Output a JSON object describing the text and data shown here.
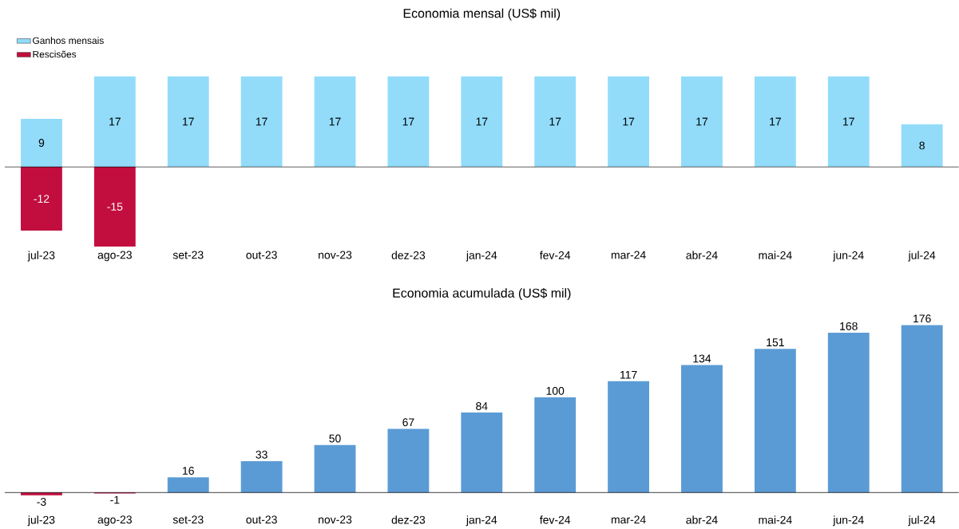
{
  "chart_data": [
    {
      "type": "bar",
      "title": "Economia mensal (US$ mil)",
      "categories": [
        "jul-23",
        "ago-23",
        "set-23",
        "out-23",
        "nov-23",
        "dez-23",
        "jan-24",
        "fev-24",
        "mar-24",
        "abr-24",
        "mai-24",
        "jun-24",
        "jul-24"
      ],
      "stacked": true,
      "data_labels": true,
      "legend": "top left",
      "series": [
        {
          "name": "Ganhos mensais",
          "color": "#92dcfa",
          "values": [
            9,
            17,
            17,
            17,
            17,
            17,
            17,
            17,
            17,
            17,
            17,
            17,
            8
          ]
        },
        {
          "name": "Rescisões",
          "color": "#c20e3e",
          "values": [
            -12,
            -15,
            null,
            null,
            null,
            null,
            null,
            null,
            null,
            null,
            null,
            null,
            null
          ]
        }
      ]
    },
    {
      "type": "bar",
      "title": "Economia acumulada (US$ mil)",
      "categories": [
        "jul-23",
        "ago-23",
        "set-23",
        "out-23",
        "nov-23",
        "dez-23",
        "jan-24",
        "fev-24",
        "mar-24",
        "abr-24",
        "mai-24",
        "jun-24",
        "jul-24"
      ],
      "data_labels": true,
      "values": [
        -3,
        -1,
        16,
        33,
        50,
        67,
        84,
        100,
        117,
        134,
        151,
        168,
        176
      ],
      "colors": [
        "#c20e3e",
        "#c20e3e",
        "#5b9bd5",
        "#5b9bd5",
        "#5b9bd5",
        "#5b9bd5",
        "#5b9bd5",
        "#5b9bd5",
        "#5b9bd5",
        "#5b9bd5",
        "#5b9bd5",
        "#5b9bd5",
        "#5b9bd5"
      ]
    }
  ]
}
